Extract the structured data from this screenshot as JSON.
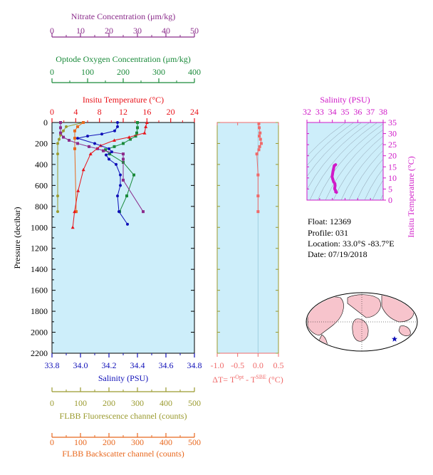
{
  "float_info": {
    "float_label": "Float:",
    "float_id": "12369",
    "profile_label": "Profile:",
    "profile_id": "031",
    "location_label": "Location:",
    "location_value": "33.0°S  -83.7°E",
    "date_label": "Date:",
    "date_value": "07/19/2018"
  },
  "colors": {
    "nitrate": "#8b2c8b",
    "oxygen": "#1a8a3a",
    "temperature": "#e8131a",
    "salinity": "#1010b8",
    "fluorescence": "#9a9a2e",
    "backscatter": "#e8681e",
    "delta_t": "#f06a6a",
    "ts_salinity": "#d01ac8",
    "plot_bg": "#cdeefa",
    "land": "#f7c4cc"
  },
  "chart_data": [
    {
      "type": "line",
      "id": "main-profile",
      "ylabel": "Pressure (decibar)",
      "ylim": [
        2200,
        0
      ],
      "yticks": [
        0,
        200,
        400,
        600,
        800,
        1000,
        1200,
        1400,
        1600,
        1800,
        2000,
        2200
      ],
      "axes": {
        "nitrate": {
          "label": "Nitrate Concentration (μm/kg)",
          "range": [
            0,
            50
          ],
          "ticks": [
            0,
            10,
            20,
            30,
            40,
            50
          ]
        },
        "oxygen": {
          "label": "Optode Oxygen Concentration (μm/kg)",
          "range": [
            0,
            400
          ],
          "ticks": [
            0,
            100,
            200,
            300,
            400
          ]
        },
        "temperature": {
          "label": "Insitu Temperature (°C)",
          "range": [
            0,
            24
          ],
          "ticks": [
            0,
            4,
            8,
            12,
            16,
            20,
            24
          ]
        },
        "salinity": {
          "label": "Salinity (PSU)",
          "range": [
            33.8,
            34.8
          ],
          "ticks": [
            "33.8",
            "34.0",
            "34.2",
            "34.4",
            "34.6",
            "34.8"
          ]
        },
        "fluorescence": {
          "label": "FLBB Fluorescence channel (counts)",
          "range": [
            0,
            500
          ],
          "ticks": [
            0,
            100,
            200,
            300,
            400,
            500
          ]
        },
        "backscatter": {
          "label": "FLBB Backscatter channel (counts)",
          "range": [
            0,
            500
          ],
          "ticks": [
            0,
            100,
            200,
            300,
            400,
            500
          ]
        }
      },
      "series": {
        "nitrate": {
          "x": [
            3,
            3,
            3,
            4,
            6,
            9,
            13,
            16,
            18,
            25,
            25,
            25,
            32
          ],
          "y": [
            0,
            50,
            100,
            140,
            170,
            200,
            230,
            250,
            270,
            300,
            350,
            550,
            850
          ]
        },
        "oxygen": {
          "x": [
            240,
            240,
            238,
            235,
            220,
            200,
            175,
            150,
            162,
            200,
            230,
            210,
            190
          ],
          "y": [
            0,
            50,
            100,
            130,
            160,
            200,
            230,
            260,
            300,
            380,
            500,
            700,
            850
          ]
        },
        "temperature": {
          "x": [
            16,
            15.8,
            15.6,
            13,
            10.5,
            8.2,
            6.5,
            5.3,
            4.4,
            3.8,
            3.5
          ],
          "y": [
            0,
            40,
            100,
            140,
            170,
            220,
            300,
            450,
            650,
            850,
            1000
          ]
        },
        "salinity": {
          "x": [
            34.26,
            34.26,
            34.24,
            34.15,
            34.05,
            33.98,
            34.1,
            34.2,
            34.22,
            34.18,
            34.2,
            34.25,
            34.28,
            34.28,
            34.26,
            34.27,
            34.33
          ],
          "y": [
            0,
            40,
            80,
            110,
            130,
            150,
            200,
            250,
            280,
            310,
            350,
            400,
            500,
            600,
            700,
            850,
            970
          ]
        },
        "fluorescence": {
          "x": [
            110,
            50,
            40,
            30,
            25,
            20,
            20,
            20,
            20
          ],
          "y": [
            0,
            40,
            80,
            120,
            160,
            200,
            300,
            700,
            850
          ]
        },
        "backscatter": {
          "x": [
            110,
            90,
            80,
            80,
            80,
            85
          ],
          "y": [
            0,
            40,
            80,
            150,
            250,
            850
          ]
        }
      }
    },
    {
      "type": "scatter",
      "id": "delta-t",
      "xlabel": "ΔT= T",
      "xlabel_sup1": "Opt",
      "xlabel_mid": " - T",
      "xlabel_sup2": "SBE",
      "xlabel_end": " (°C)",
      "xlim": [
        -1.0,
        0.5
      ],
      "xticks": [
        "-1.0",
        "-0.5",
        "0.0",
        "0.5"
      ],
      "ylim": [
        2200,
        0
      ],
      "x": [
        0.02,
        0.03,
        0.05,
        0.03,
        0.06,
        0.08,
        0.04,
        0.02,
        -0.03,
        0.0,
        0.0,
        0.0
      ],
      "y": [
        10,
        50,
        100,
        130,
        160,
        200,
        230,
        260,
        300,
        500,
        700,
        850
      ]
    },
    {
      "type": "line",
      "id": "ts-diagram",
      "title": "Salinity (PSU)",
      "ylabel": "Insitu Temperature (°C)",
      "xlim": [
        32,
        38
      ],
      "ylim": [
        0,
        35
      ],
      "xticks": [
        "32",
        "33",
        "34",
        "35",
        "36",
        "37",
        "38"
      ],
      "yticks": [
        "0",
        "5",
        "10",
        "15",
        "20",
        "25",
        "30",
        "35"
      ],
      "x": [
        34.26,
        34.24,
        34.15,
        34.05,
        33.98,
        34.1,
        34.2,
        34.22,
        34.18,
        34.2,
        34.25,
        34.28,
        34.26,
        34.33
      ],
      "y": [
        16,
        15.8,
        15.6,
        13,
        10.5,
        8.2,
        7.5,
        6.5,
        5.3,
        4.8,
        4.4,
        3.9,
        3.7,
        3.5
      ]
    }
  ]
}
